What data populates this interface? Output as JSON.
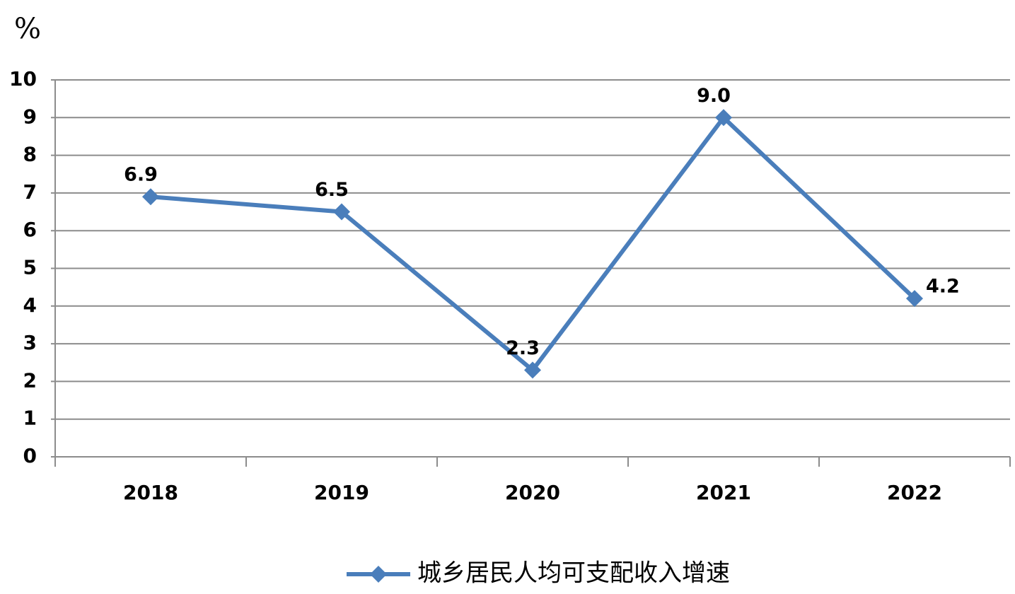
{
  "chart_data": {
    "type": "line",
    "y_label": "%",
    "categories": [
      "2018",
      "2019",
      "2020",
      "2021",
      "2022"
    ],
    "series": [
      {
        "name": "城乡居民人均可支配收入增速",
        "color": "#4a7ebb",
        "values": [
          6.9,
          6.5,
          2.3,
          9.0,
          4.2
        ],
        "value_labels": [
          "6.9",
          "6.5",
          "2.3",
          "9.0",
          "4.2"
        ]
      }
    ],
    "ylim": [
      0,
      10
    ],
    "yticks": [
      0,
      1,
      2,
      3,
      4,
      5,
      6,
      7,
      8,
      9,
      10
    ],
    "grid": true
  }
}
